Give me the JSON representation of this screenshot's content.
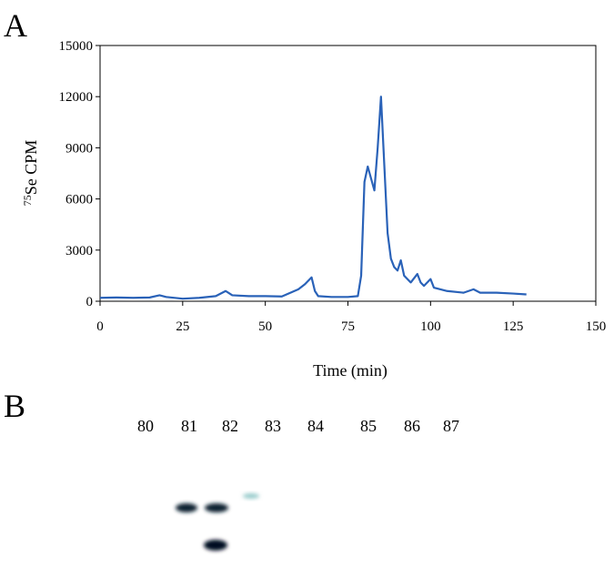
{
  "chart_data": {
    "type": "line",
    "panel_label": "A",
    "ylabel": {
      "superscript": "75",
      "text": "Se CPM"
    },
    "xlabel": "Time (min)",
    "series": [
      {
        "color": "#2a62b8",
        "x": [
          0,
          5,
          10,
          15,
          18,
          20,
          25,
          30,
          35,
          38,
          40,
          45,
          50,
          55,
          60,
          62,
          63,
          64,
          65,
          66,
          70,
          75,
          78,
          79,
          80,
          81,
          82,
          83,
          84,
          85,
          86,
          87,
          88,
          89,
          90,
          91,
          92,
          94,
          96,
          97,
          98,
          100,
          101,
          103,
          105,
          110,
          113,
          115,
          120,
          125,
          129
        ],
        "values": [
          200,
          220,
          200,
          220,
          350,
          250,
          150,
          200,
          300,
          600,
          350,
          300,
          300,
          280,
          700,
          1000,
          1200,
          1400,
          600,
          300,
          250,
          250,
          300,
          1500,
          7000,
          7900,
          7200,
          6500,
          9000,
          12000,
          8000,
          4000,
          2500,
          2000,
          1800,
          2400,
          1500,
          1100,
          1600,
          1100,
          900,
          1300,
          800,
          700,
          600,
          500,
          700,
          500,
          500,
          450,
          400
        ]
      }
    ],
    "xlim": [
      0,
      150
    ],
    "xticks": [
      0,
      25,
      50,
      75,
      100,
      125,
      150
    ],
    "ylim": [
      0,
      15000
    ],
    "yticks": [
      0,
      3000,
      6000,
      9000,
      12000,
      15000
    ]
  },
  "panel_b": {
    "panel_label": "B",
    "lanes": [
      "80",
      "81",
      "82",
      "83",
      "84",
      "85",
      "86",
      "87"
    ]
  }
}
